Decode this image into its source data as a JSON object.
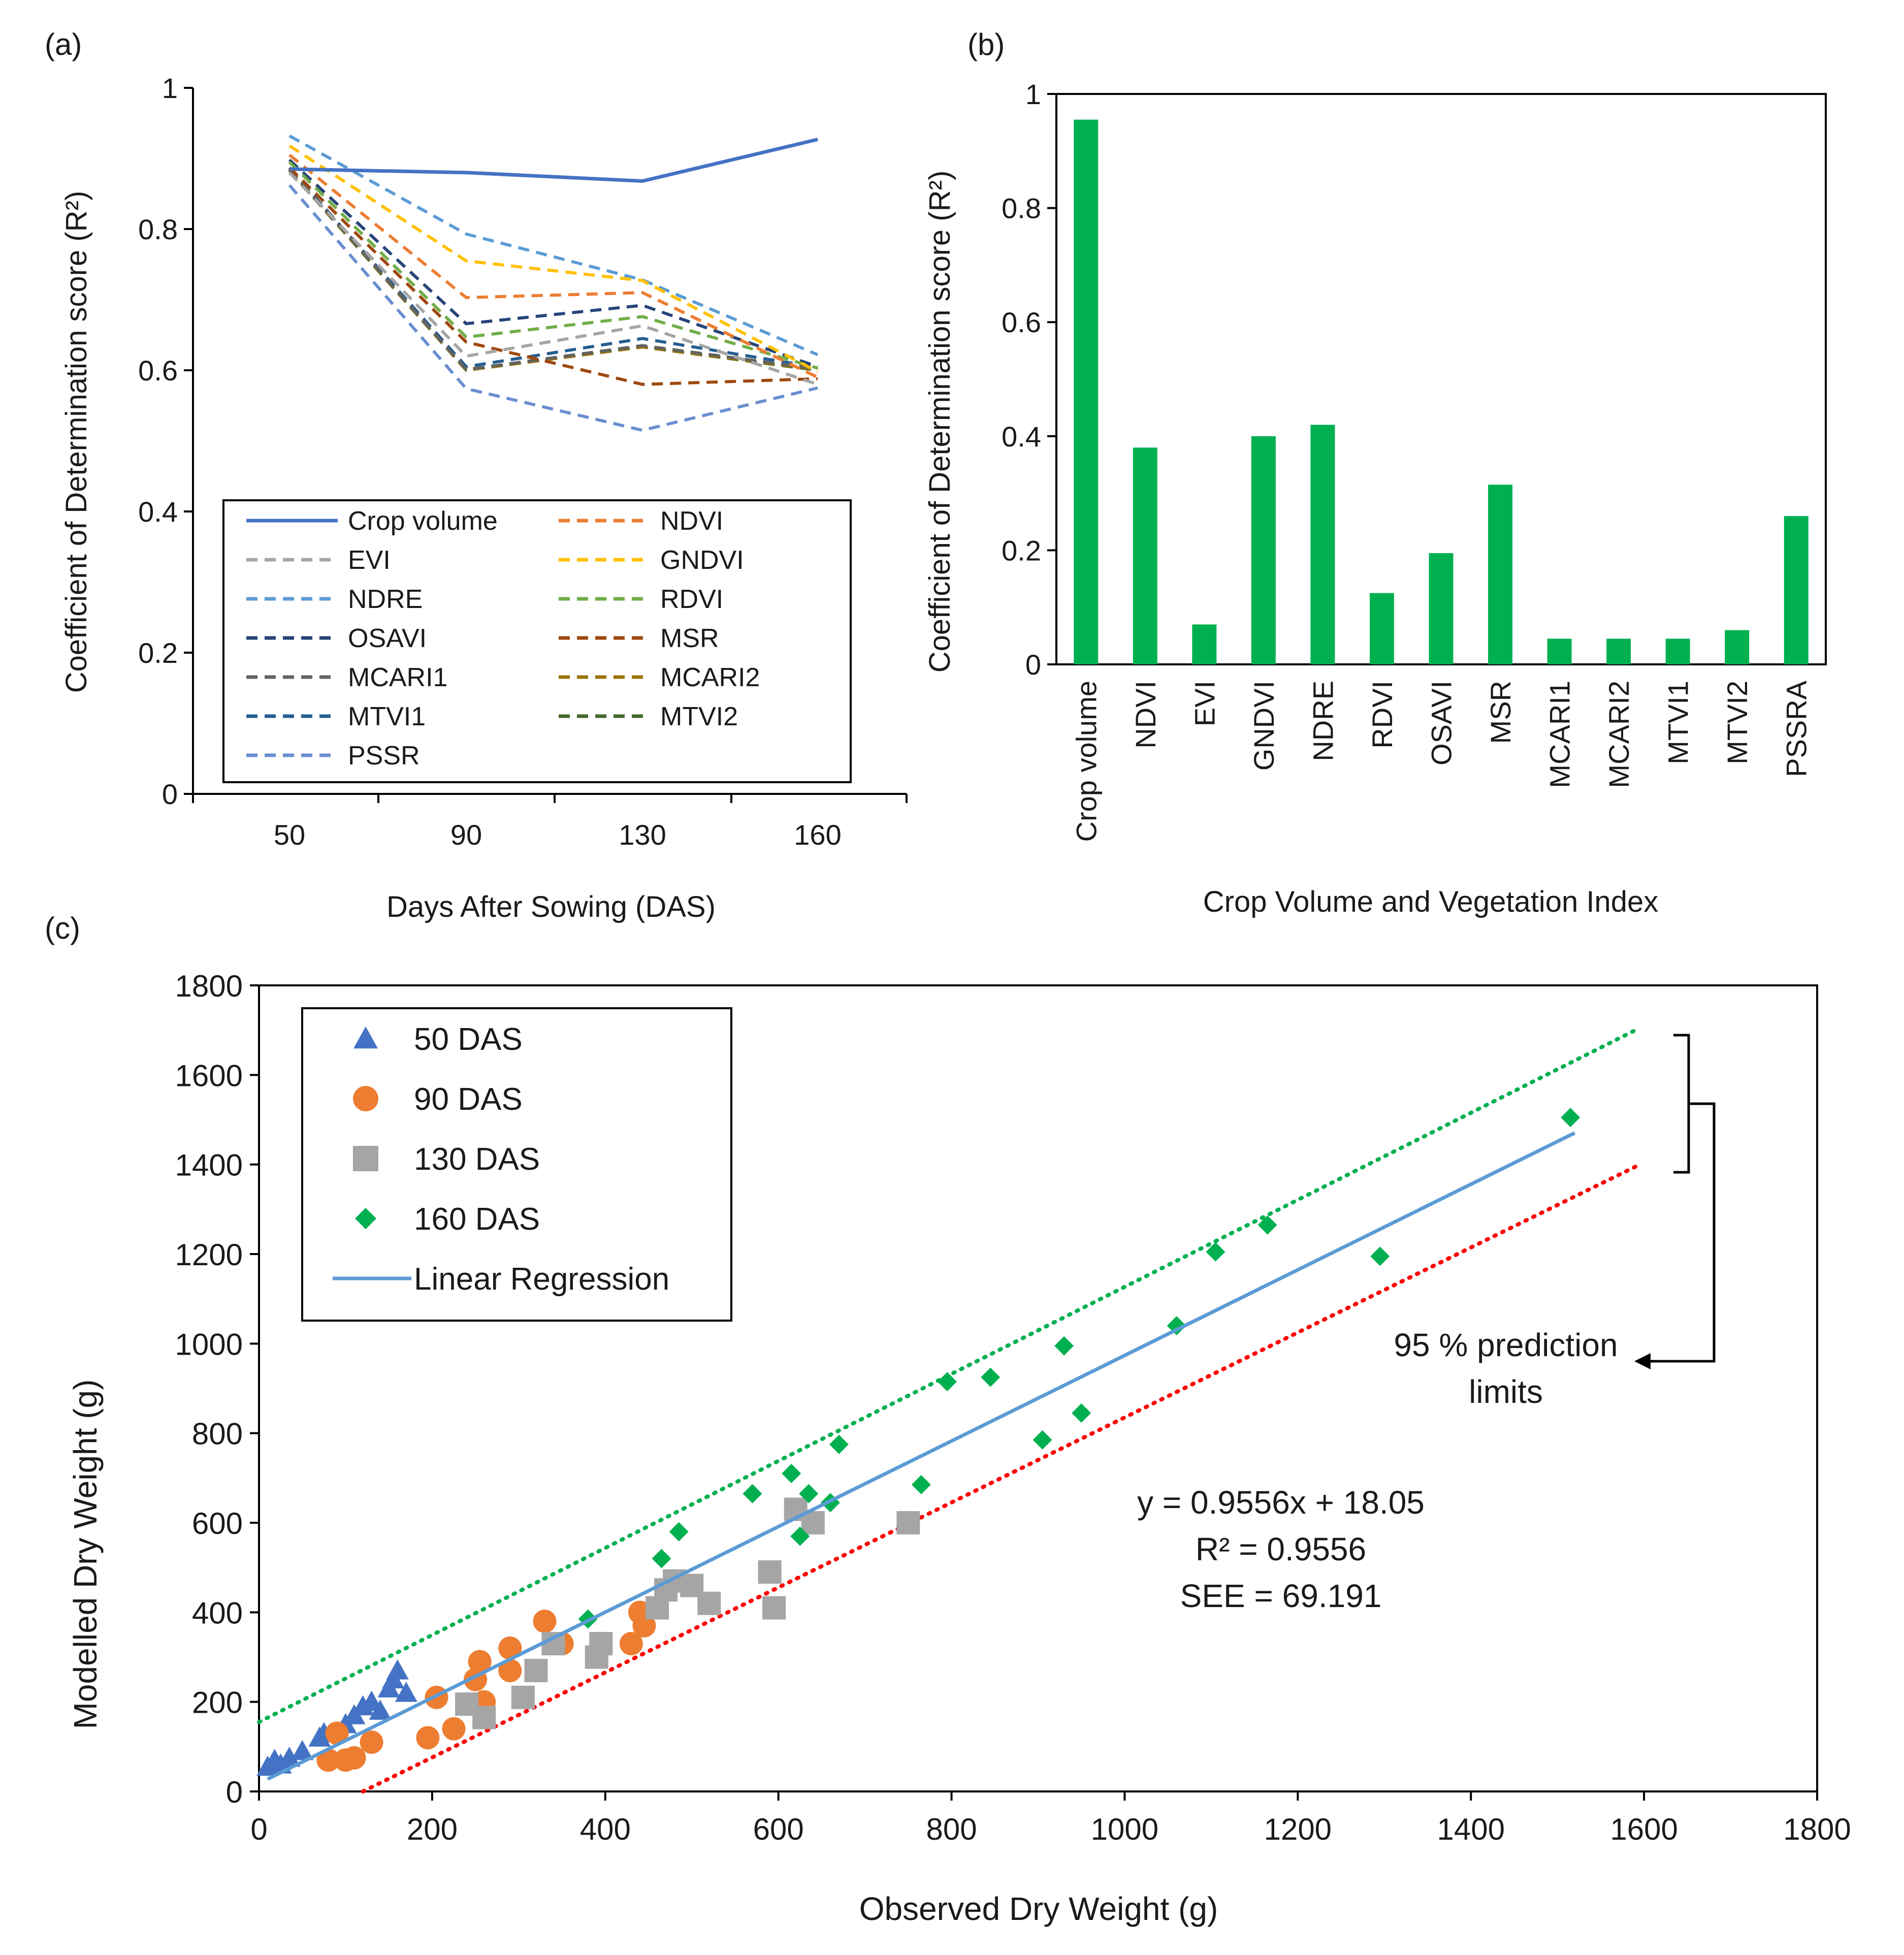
{
  "chart_data": [
    {
      "panel_label": "(a)",
      "type": "line",
      "x": [
        50,
        90,
        130,
        160
      ],
      "xlabel": "Days After Sowing (DAS)",
      "ylabel": "Coefficient of Determination score (R²)",
      "ylim": [
        0,
        1
      ],
      "yticks": [
        "0",
        "0.2",
        "0.4",
        "0.6",
        "0.8",
        "1"
      ],
      "xticks": [
        "50",
        "90",
        "130",
        "160"
      ],
      "legend_placement": "bottom-center",
      "series": [
        {
          "name": "Crop volume",
          "color": "#4472c4",
          "dashed": false,
          "values": [
            0.885,
            0.88,
            0.868,
            0.927
          ]
        },
        {
          "name": "NDVI",
          "color": "#ed7d31",
          "dashed": true,
          "values": [
            0.905,
            0.703,
            0.71,
            0.59
          ]
        },
        {
          "name": "EVI",
          "color": "#a5a5a5",
          "dashed": true,
          "values": [
            0.88,
            0.62,
            0.663,
            0.58
          ]
        },
        {
          "name": "GNDVI",
          "color": "#ffc000",
          "dashed": true,
          "values": [
            0.918,
            0.755,
            0.727,
            0.598
          ]
        },
        {
          "name": "NDRE",
          "color": "#5b9bd5",
          "dashed": true,
          "values": [
            0.932,
            0.793,
            0.728,
            0.622
          ]
        },
        {
          "name": "RDVI",
          "color": "#70ad47",
          "dashed": true,
          "values": [
            0.895,
            0.647,
            0.676,
            0.603
          ]
        },
        {
          "name": "OSAVI",
          "color": "#264478",
          "dashed": true,
          "values": [
            0.898,
            0.666,
            0.692,
            0.605
          ]
        },
        {
          "name": "MSR",
          "color": "#9e480e",
          "dashed": true,
          "values": [
            0.887,
            0.64,
            0.58,
            0.588
          ]
        },
        {
          "name": "MCARI1",
          "color": "#636363",
          "dashed": true,
          "values": [
            0.885,
            0.601,
            0.635,
            0.602
          ]
        },
        {
          "name": "MCARI2",
          "color": "#997300",
          "dashed": true,
          "values": [
            0.884,
            0.6,
            0.633,
            0.601
          ]
        },
        {
          "name": "MTVI1",
          "color": "#255e91",
          "dashed": true,
          "values": [
            0.886,
            0.605,
            0.645,
            0.604
          ]
        },
        {
          "name": "MTVI2",
          "color": "#43682b",
          "dashed": true,
          "values": [
            0.883,
            0.6,
            0.633,
            0.6
          ]
        },
        {
          "name": "PSSR",
          "color": "#698ed0",
          "dashed": true,
          "values": [
            0.862,
            0.574,
            0.515,
            0.575
          ]
        }
      ]
    },
    {
      "panel_label": "(b)",
      "type": "bar",
      "color": "#00b050",
      "categories": [
        "Crop volume",
        "NDVI",
        "EVI",
        "GNDVI",
        "NDRE",
        "RDVI",
        "OSAVI",
        "MSR",
        "MCARI1",
        "MCARI2",
        "MTVI1",
        "MTVI2",
        "PSSRA"
      ],
      "values": [
        0.955,
        0.38,
        0.07,
        0.4,
        0.42,
        0.125,
        0.195,
        0.315,
        0.045,
        0.045,
        0.045,
        0.06,
        0.26
      ],
      "xlabel": "Crop Volume and Vegetation Index",
      "ylabel": "Coefficient of Determination score (R²)",
      "ylim": [
        0,
        1
      ],
      "yticks": [
        "0",
        "0.2",
        "0.4",
        "0.6",
        "0.8",
        "1"
      ]
    },
    {
      "panel_label": "(c)",
      "type": "scatter",
      "xlabel": "Observed Dry Weight (g)",
      "ylabel": "Modelled Dry Weight (g)",
      "xlim": [
        0,
        1800
      ],
      "ylim": [
        0,
        1800
      ],
      "xticks": [
        "0",
        "200",
        "400",
        "600",
        "800",
        "1000",
        "1200",
        "1400",
        "1600",
        "1800"
      ],
      "yticks": [
        "0",
        "200",
        "400",
        "600",
        "800",
        "1000",
        "1200",
        "1400",
        "1600",
        "1800"
      ],
      "legend_placement": "top-left",
      "series": [
        {
          "name": "50 DAS",
          "marker": "triangle",
          "color": "#4472c4",
          "points": [
            [
              10,
              55
            ],
            [
              18,
              70
            ],
            [
              25,
              60
            ],
            [
              35,
              75
            ],
            [
              50,
              90
            ],
            [
              70,
              120
            ],
            [
              75,
              130
            ],
            [
              100,
              150
            ],
            [
              110,
              170
            ],
            [
              120,
              190
            ],
            [
              130,
              200
            ],
            [
              140,
              180
            ],
            [
              150,
              230
            ],
            [
              155,
              250
            ],
            [
              160,
              270
            ],
            [
              170,
              220
            ]
          ]
        },
        {
          "name": "90 DAS",
          "marker": "circle",
          "color": "#ed7d31",
          "points": [
            [
              80,
              70
            ],
            [
              90,
              130
            ],
            [
              100,
              70
            ],
            [
              110,
              75
            ],
            [
              130,
              110
            ],
            [
              195,
              120
            ],
            [
              205,
              210
            ],
            [
              225,
              140
            ],
            [
              250,
              250
            ],
            [
              255,
              290
            ],
            [
              260,
              200
            ],
            [
              290,
              270
            ],
            [
              290,
              320
            ],
            [
              330,
              380
            ],
            [
              350,
              330
            ],
            [
              430,
              330
            ],
            [
              440,
              400
            ],
            [
              445,
              370
            ]
          ]
        },
        {
          "name": "130 DAS",
          "marker": "square",
          "color": "#a5a5a5",
          "points": [
            [
              240,
              195
            ],
            [
              260,
              165
            ],
            [
              305,
              210
            ],
            [
              320,
              270
            ],
            [
              340,
              330
            ],
            [
              390,
              300
            ],
            [
              395,
              330
            ],
            [
              460,
              410
            ],
            [
              470,
              450
            ],
            [
              480,
              470
            ],
            [
              500,
              460
            ],
            [
              520,
              420
            ],
            [
              590,
              490
            ],
            [
              595,
              410
            ],
            [
              620,
              630
            ],
            [
              640,
              600
            ],
            [
              750,
              600
            ]
          ]
        },
        {
          "name": "160 DAS",
          "marker": "diamond",
          "color": "#00b050",
          "points": [
            [
              380,
              385
            ],
            [
              465,
              520
            ],
            [
              485,
              580
            ],
            [
              570,
              665
            ],
            [
              615,
              710
            ],
            [
              625,
              570
            ],
            [
              635,
              665
            ],
            [
              660,
              645
            ],
            [
              670,
              775
            ],
            [
              765,
              685
            ],
            [
              795,
              915
            ],
            [
              845,
              925
            ],
            [
              905,
              785
            ],
            [
              930,
              995
            ],
            [
              950,
              845
            ],
            [
              1060,
              1040
            ],
            [
              1105,
              1205
            ],
            [
              1165,
              1265
            ],
            [
              1295,
              1195
            ],
            [
              1515,
              1505
            ]
          ]
        }
      ],
      "regression": {
        "name": "Linear Regression",
        "color": "#5b9bd5",
        "slope": 0.9556,
        "intercept": 18.05,
        "x_range": [
          10,
          1520
        ]
      },
      "prediction_limits": {
        "upper": {
          "color": "#00b050",
          "x": [
            0,
            1590
          ],
          "y": [
            155,
            1700
          ]
        },
        "lower": {
          "color": "#ff0000",
          "x": [
            120,
            1590
          ],
          "y": [
            0,
            1395
          ]
        }
      },
      "annotations": {
        "equation": "y = 0.9556x + 18.05",
        "r2": "R² = 0.9556",
        "see": "SEE = 69.191",
        "limits_line1": "95 % prediction",
        "limits_line2": "limits"
      }
    }
  ]
}
